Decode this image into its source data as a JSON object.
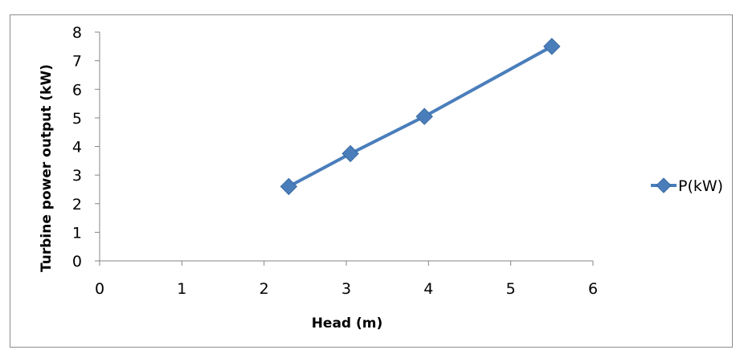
{
  "chart_data": {
    "type": "line",
    "title": "",
    "xlabel": "Head (m)",
    "ylabel": "Turbine power output  (kW)",
    "xlim": [
      0,
      6
    ],
    "ylim": [
      0,
      8
    ],
    "xticks": [
      "0",
      "1",
      "2",
      "3",
      "4",
      "5",
      "6"
    ],
    "yticks": [
      "0",
      "1",
      "2",
      "3",
      "4",
      "5",
      "6",
      "7",
      "8"
    ],
    "grid": false,
    "legend_position": "right",
    "series": [
      {
        "name": "P(kW)",
        "color": "#4a7ebb",
        "marker": "diamond",
        "x": [
          2.3,
          3.05,
          3.95,
          5.5
        ],
        "y": [
          2.6,
          3.75,
          5.05,
          7.5
        ]
      }
    ]
  }
}
